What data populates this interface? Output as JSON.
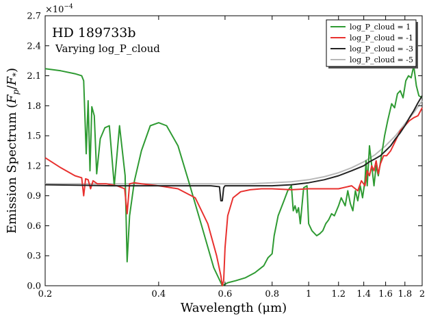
{
  "chart_data": {
    "type": "line",
    "title": "HD 189733b",
    "subtitle": "Varying log_P_cloud",
    "xlabel": "Wavelength (μm)",
    "ylabel": "Emission Spectrum (F_p/F_*)",
    "ylabel_parts": {
      "prefix": "Emission Spectrum (",
      "F": "F",
      "p": "p",
      "slash": "/",
      "star": "*",
      "suffix": ")"
    },
    "y_multiplier_label": {
      "base": "×10",
      "exponent": "−4"
    },
    "x_scale": "log",
    "xlim": [
      0.2,
      2.0
    ],
    "ylim": [
      0.0,
      2.7
    ],
    "y_units_note": "values in units of 1e-4",
    "x_ticks": [
      0.2,
      0.4,
      0.6,
      0.8,
      1,
      1.2,
      1.4,
      1.6,
      1.8,
      2
    ],
    "x_tick_labels": [
      "0.2",
      "0.4",
      "0.6",
      "0.8",
      "1",
      "1.2",
      "1.4",
      "1.6",
      "1.8",
      "2"
    ],
    "y_ticks": [
      0.0,
      0.3,
      0.6,
      0.9,
      1.2,
      1.5,
      1.8,
      2.1,
      2.4,
      2.7
    ],
    "y_tick_labels": [
      "0.0",
      "0.3",
      "0.6",
      "0.9",
      "1.2",
      "1.5",
      "1.8",
      "2.1",
      "2.4",
      "2.7"
    ],
    "grid": false,
    "legend_position": "top-right",
    "series": [
      {
        "name": "log_P_cloud = 1",
        "color": "#2e9a32",
        "x": [
          0.2,
          0.22,
          0.24,
          0.25,
          0.253,
          0.257,
          0.26,
          0.263,
          0.266,
          0.27,
          0.274,
          0.28,
          0.288,
          0.296,
          0.305,
          0.315,
          0.326,
          0.33,
          0.335,
          0.345,
          0.36,
          0.38,
          0.4,
          0.42,
          0.45,
          0.48,
          0.52,
          0.56,
          0.59,
          0.61,
          0.64,
          0.68,
          0.72,
          0.76,
          0.78,
          0.8,
          0.81,
          0.83,
          0.86,
          0.88,
          0.9,
          0.91,
          0.92,
          0.93,
          0.94,
          0.95,
          0.97,
          0.99,
          1.0,
          1.02,
          1.05,
          1.07,
          1.09,
          1.11,
          1.13,
          1.15,
          1.17,
          1.2,
          1.22,
          1.25,
          1.27,
          1.29,
          1.31,
          1.33,
          1.35,
          1.37,
          1.39,
          1.41,
          1.42,
          1.43,
          1.45,
          1.47,
          1.49,
          1.51,
          1.53,
          1.56,
          1.59,
          1.62,
          1.66,
          1.69,
          1.72,
          1.75,
          1.78,
          1.81,
          1.84,
          1.87,
          1.9,
          1.93,
          1.96,
          2.0
        ],
        "values": [
          2.17,
          2.15,
          2.12,
          2.1,
          2.05,
          1.32,
          1.85,
          1.15,
          1.79,
          1.7,
          1.12,
          1.47,
          1.58,
          1.6,
          1.0,
          1.6,
          1.1,
          0.24,
          0.7,
          1.05,
          1.35,
          1.6,
          1.63,
          1.6,
          1.4,
          1.05,
          0.6,
          0.18,
          0.0,
          0.03,
          0.05,
          0.08,
          0.13,
          0.2,
          0.28,
          0.32,
          0.5,
          0.7,
          0.85,
          0.95,
          1.0,
          0.75,
          0.8,
          0.73,
          0.78,
          0.62,
          0.98,
          1.0,
          0.62,
          0.55,
          0.5,
          0.52,
          0.55,
          0.62,
          0.66,
          0.72,
          0.7,
          0.8,
          0.88,
          0.8,
          0.95,
          0.82,
          0.75,
          0.95,
          0.85,
          1.0,
          0.88,
          1.05,
          1.25,
          1.0,
          1.4,
          1.2,
          1.0,
          1.2,
          1.1,
          1.3,
          1.5,
          1.65,
          1.82,
          1.78,
          1.92,
          1.95,
          1.88,
          2.05,
          2.1,
          2.08,
          2.2,
          2.0,
          1.9,
          1.88
        ]
      },
      {
        "name": "log_P_cloud = -1",
        "color": "#e8302e",
        "x": [
          0.2,
          0.22,
          0.24,
          0.25,
          0.253,
          0.256,
          0.26,
          0.264,
          0.268,
          0.275,
          0.29,
          0.31,
          0.325,
          0.33,
          0.335,
          0.345,
          0.36,
          0.4,
          0.45,
          0.5,
          0.54,
          0.57,
          0.585,
          0.59,
          0.595,
          0.6,
          0.61,
          0.63,
          0.66,
          0.7,
          0.75,
          0.8,
          0.9,
          1.0,
          1.1,
          1.2,
          1.3,
          1.35,
          1.38,
          1.41,
          1.43,
          1.45,
          1.47,
          1.49,
          1.51,
          1.53,
          1.55,
          1.58,
          1.61,
          1.65,
          1.7,
          1.75,
          1.8,
          1.85,
          1.9,
          1.95,
          2.0
        ],
        "values": [
          1.28,
          1.18,
          1.1,
          1.08,
          0.9,
          1.07,
          1.06,
          0.97,
          1.05,
          1.02,
          1.02,
          1.0,
          0.97,
          0.72,
          1.02,
          1.03,
          1.02,
          1.0,
          0.97,
          0.88,
          0.62,
          0.3,
          0.1,
          0.0,
          0.05,
          0.38,
          0.7,
          0.88,
          0.94,
          0.96,
          0.97,
          0.97,
          0.96,
          0.97,
          0.97,
          0.97,
          1.0,
          0.95,
          1.05,
          1.0,
          1.15,
          1.1,
          1.2,
          1.15,
          1.25,
          1.12,
          1.22,
          1.3,
          1.3,
          1.35,
          1.45,
          1.55,
          1.6,
          1.65,
          1.68,
          1.7,
          1.78
        ]
      },
      {
        "name": "log_P_cloud = -3",
        "color": "#222222",
        "x": [
          0.2,
          0.3,
          0.4,
          0.5,
          0.55,
          0.58,
          0.585,
          0.59,
          0.595,
          0.6,
          0.65,
          0.7,
          0.8,
          0.9,
          1.0,
          1.1,
          1.2,
          1.3,
          1.4,
          1.45,
          1.5,
          1.55,
          1.6,
          1.65,
          1.7,
          1.75,
          1.8,
          1.85,
          1.9,
          1.95,
          2.0
        ],
        "values": [
          1.01,
          1.0,
          1.0,
          1.0,
          1.0,
          0.99,
          0.85,
          0.85,
          0.98,
          1.0,
          1.0,
          1.0,
          1.0,
          1.01,
          1.03,
          1.06,
          1.1,
          1.15,
          1.2,
          1.24,
          1.27,
          1.3,
          1.35,
          1.4,
          1.47,
          1.53,
          1.6,
          1.68,
          1.75,
          1.83,
          1.9
        ]
      },
      {
        "name": "log_P_cloud = -5",
        "color": "#b8b8b8",
        "x": [
          0.2,
          0.3,
          0.4,
          0.5,
          0.6,
          0.7,
          0.8,
          0.9,
          1.0,
          1.1,
          1.2,
          1.3,
          1.4,
          1.5,
          1.6,
          1.7,
          1.8,
          1.9,
          2.0
        ],
        "values": [
          1.02,
          1.02,
          1.02,
          1.02,
          1.02,
          1.02,
          1.03,
          1.04,
          1.06,
          1.09,
          1.13,
          1.18,
          1.24,
          1.31,
          1.4,
          1.5,
          1.62,
          1.73,
          1.85
        ]
      }
    ]
  }
}
